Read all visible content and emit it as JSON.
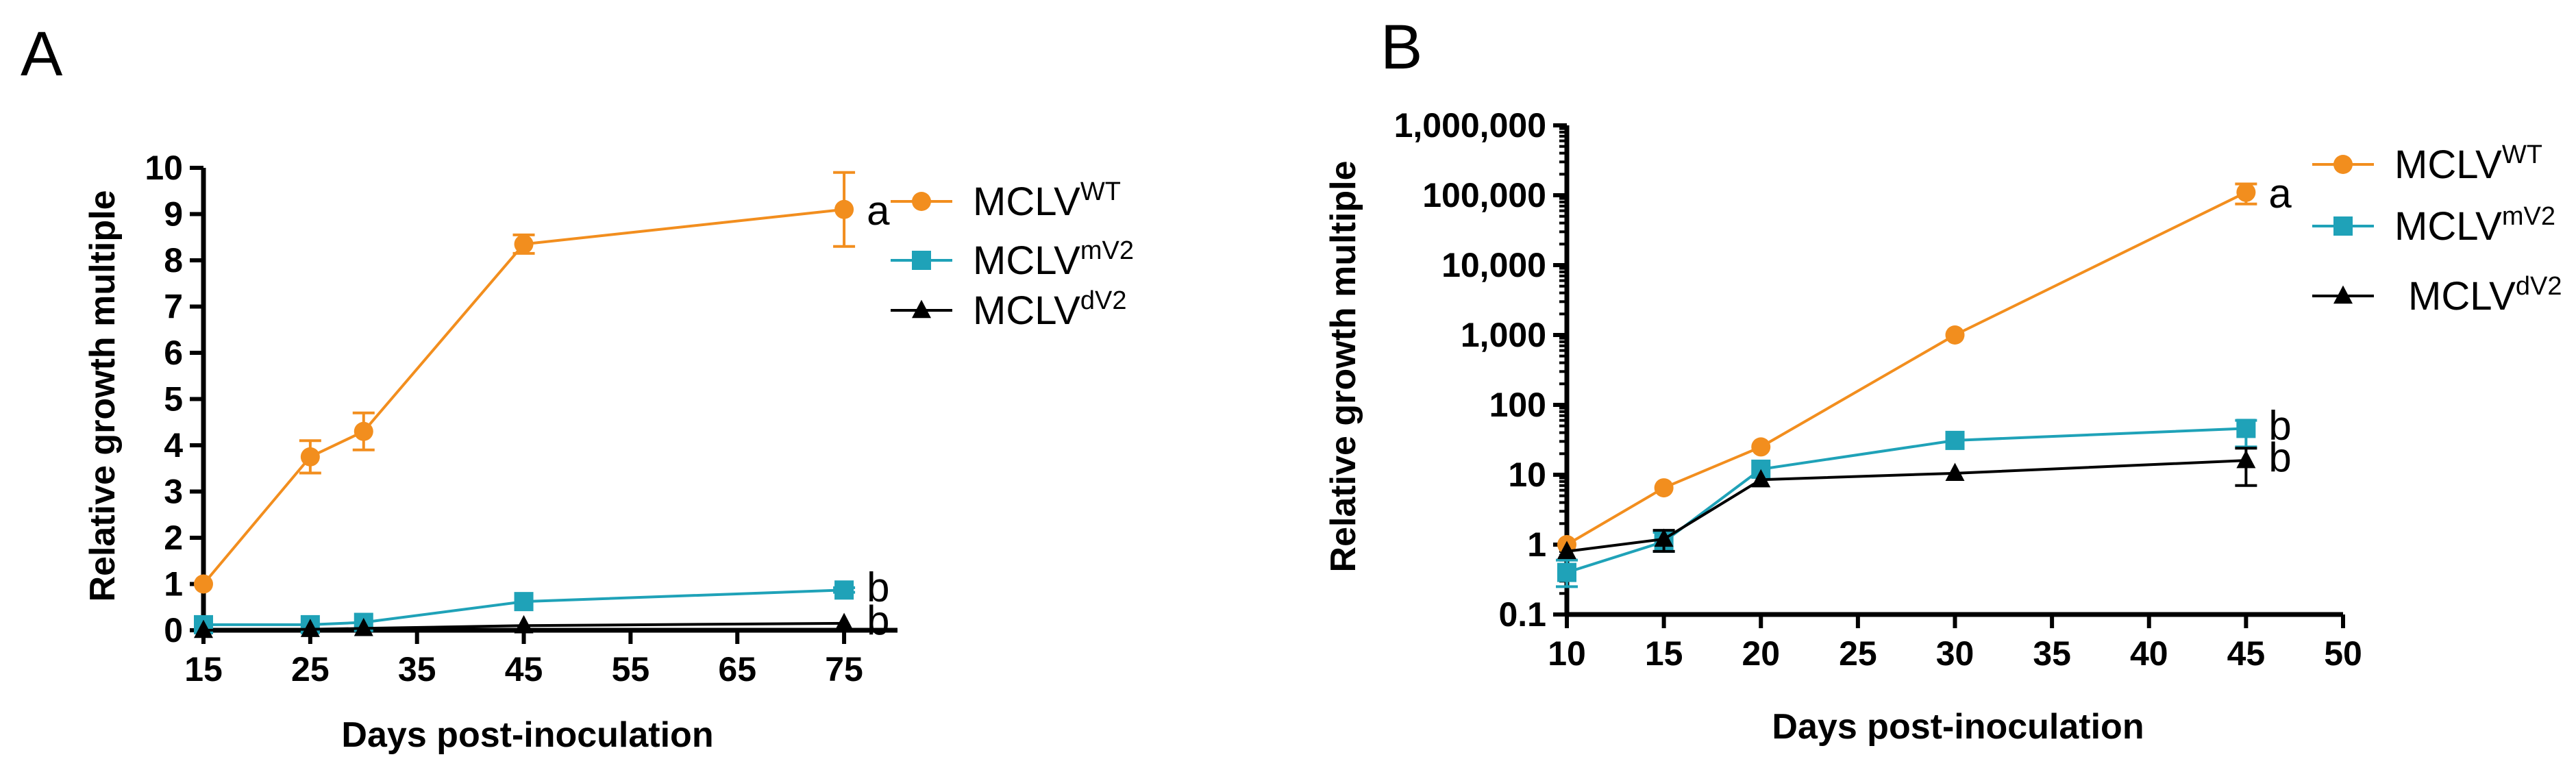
{
  "panels": {
    "a": {
      "letter": "A"
    },
    "b": {
      "letter": "B"
    }
  },
  "colors": {
    "wt": "#F28E1E",
    "mv2": "#1FA2B8",
    "dv2": "#000000"
  },
  "chart_data": [
    {
      "type": "line",
      "panel": "A",
      "xlabel": "Days post-inoculation",
      "ylabel": "Relative growth multiple",
      "xlim": [
        15,
        80
      ],
      "ylim": [
        0,
        10
      ],
      "xticks": [
        "15",
        "25",
        "35",
        "45",
        "55",
        "65",
        "75"
      ],
      "yticks": [
        "0",
        "1",
        "2",
        "3",
        "4",
        "5",
        "6",
        "7",
        "8",
        "9",
        "10"
      ],
      "legend_position": "top-right",
      "series": [
        {
          "name_base": "MCLV",
          "name_sup": "WT",
          "marker": "circle",
          "color": "#F28E1E",
          "x": [
            15,
            25,
            30,
            45,
            75
          ],
          "y": [
            1.0,
            3.75,
            4.3,
            8.35,
            9.1
          ],
          "error": [
            0,
            0.35,
            0.4,
            0.2,
            0.8
          ],
          "annotation": "a"
        },
        {
          "name_base": "MCLV",
          "name_sup": "mV2",
          "marker": "square",
          "color": "#1FA2B8",
          "x": [
            15,
            25,
            30,
            45,
            75
          ],
          "y": [
            0.12,
            0.12,
            0.17,
            0.62,
            0.87
          ],
          "error": [
            0,
            0,
            0,
            0,
            0.05
          ],
          "annotation": "b"
        },
        {
          "name_base": "MCLV",
          "name_sup": "dV2",
          "marker": "triangle",
          "color": "#000000",
          "x": [
            15,
            25,
            30,
            45,
            75
          ],
          "y": [
            0.0,
            0.02,
            0.04,
            0.1,
            0.15
          ],
          "error": [
            0,
            0,
            0,
            0,
            0
          ],
          "annotation": "b"
        }
      ]
    },
    {
      "type": "line",
      "panel": "B",
      "xlabel": "Days post-inoculation",
      "ylabel": "Relative growth multiple",
      "yscale": "log",
      "xlim": [
        10,
        50
      ],
      "ylim": [
        0.1,
        1000000
      ],
      "xticks": [
        "10",
        "15",
        "20",
        "25",
        "30",
        "35",
        "40",
        "45",
        "50"
      ],
      "yticks": [
        "0.1",
        "1",
        "10",
        "100",
        "1,000",
        "10,000",
        "100,000",
        "1,000,000"
      ],
      "legend_position": "top-right",
      "series": [
        {
          "name_base": "MCLV",
          "name_sup": "WT",
          "marker": "circle",
          "color": "#F28E1E",
          "x": [
            10,
            15,
            20,
            30,
            45
          ],
          "y": [
            1,
            6.5,
            25,
            1000,
            110000
          ],
          "error_low": [
            1,
            6.5,
            25,
            1000,
            75000
          ],
          "error_high": [
            1,
            6.5,
            25,
            1000,
            145000
          ],
          "annotation": "a"
        },
        {
          "name_base": "MCLV",
          "name_sup": "mV2",
          "marker": "square",
          "color": "#1FA2B8",
          "x": [
            10,
            15,
            20,
            30,
            45
          ],
          "y": [
            0.4,
            1.1,
            12,
            31,
            46
          ],
          "error_low": [
            0.25,
            0.8,
            12,
            31,
            25
          ],
          "error_high": [
            0.6,
            1.5,
            12,
            31,
            60
          ],
          "annotation": "b"
        },
        {
          "name_base": "MCLV",
          "name_sup": "dV2",
          "marker": "triangle",
          "color": "#000000",
          "x": [
            10,
            15,
            20,
            30,
            45
          ],
          "y": [
            0.8,
            1.2,
            8.5,
            10.5,
            16
          ],
          "error_low": [
            0.8,
            0.8,
            8.5,
            10.5,
            7
          ],
          "error_high": [
            0.8,
            1.6,
            8.5,
            10.5,
            24
          ],
          "annotation": "b"
        }
      ]
    }
  ]
}
